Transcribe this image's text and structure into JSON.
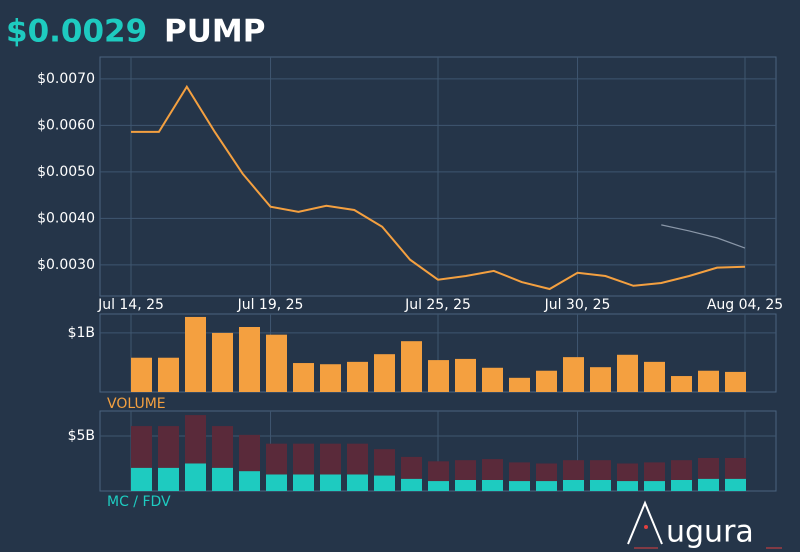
{
  "header": {
    "price": "$0.0029",
    "symbol": "PUMP"
  },
  "logo": "ugura",
  "chart_data": [
    {
      "type": "line",
      "categories": [
        "Jul 14, 25",
        null,
        null,
        null,
        null,
        "Jul 19, 25",
        null,
        null,
        null,
        null,
        null,
        "Jul 25, 25",
        null,
        null,
        null,
        null,
        "Jul 30, 25",
        null,
        null,
        null,
        null,
        null,
        "Aug 04, 25"
      ],
      "series": [
        {
          "color": "#f4a040",
          "values": [
            0.00586,
            0.00586,
            0.00683,
            0.00586,
            0.00496,
            0.00425,
            0.00414,
            0.00427,
            0.00418,
            0.00382,
            0.00311,
            0.00268,
            0.00276,
            0.00287,
            0.00263,
            0.00248,
            0.00283,
            0.00276,
            0.00255,
            0.00261,
            0.00276,
            0.00294,
            0.00296
          ]
        },
        {
          "color": "#8a97a8",
          "values": [
            null,
            null,
            null,
            null,
            null,
            null,
            null,
            null,
            null,
            null,
            null,
            null,
            null,
            null,
            null,
            null,
            null,
            null,
            null,
            0.00386,
            0.00373,
            0.00358,
            0.00336
          ]
        }
      ],
      "ylim": [
        0.00233,
        0.00747
      ],
      "yticks": [
        {
          "value": 0.003,
          "label": "$0.0030"
        },
        {
          "value": 0.004,
          "label": "$0.0040"
        },
        {
          "value": 0.005,
          "label": "$0.0050"
        },
        {
          "value": 0.006,
          "label": "$0.0060"
        },
        {
          "value": 0.007,
          "label": "$0.0070"
        }
      ],
      "grid": true
    },
    {
      "type": "bar",
      "label": "VOLUME",
      "color": "#f4a040",
      "values": [
        0.58,
        0.58,
        1.27,
        1.0,
        1.1,
        0.97,
        0.49,
        0.47,
        0.51,
        0.64,
        0.86,
        0.54,
        0.56,
        0.41,
        0.24,
        0.36,
        0.59,
        0.42,
        0.63,
        0.51,
        0.27,
        0.36,
        0.34
      ],
      "ylim": [
        0,
        1.32
      ],
      "yticks": [
        {
          "value": 1,
          "label": "$1B"
        }
      ],
      "grid": true
    },
    {
      "type": "overlay-bar",
      "label": "MC / FDV",
      "series": [
        {
          "color": "#5a2a3a",
          "values": [
            5.9,
            5.9,
            6.9,
            5.9,
            5.1,
            4.3,
            4.3,
            4.3,
            4.3,
            3.8,
            3.1,
            2.7,
            2.8,
            2.9,
            2.6,
            2.5,
            2.8,
            2.8,
            2.5,
            2.6,
            2.8,
            3.0,
            3.0
          ]
        },
        {
          "color": "#1ecbc0",
          "values": [
            2.1,
            2.1,
            2.5,
            2.1,
            1.8,
            1.5,
            1.5,
            1.5,
            1.5,
            1.4,
            1.1,
            0.9,
            1.0,
            1.0,
            0.9,
            0.9,
            1.0,
            1.0,
            0.9,
            0.9,
            1.0,
            1.1,
            1.1
          ]
        }
      ],
      "ylim": [
        0,
        7.27
      ],
      "yticks": [
        {
          "value": 5,
          "label": "$5B"
        }
      ],
      "grid": true
    }
  ]
}
